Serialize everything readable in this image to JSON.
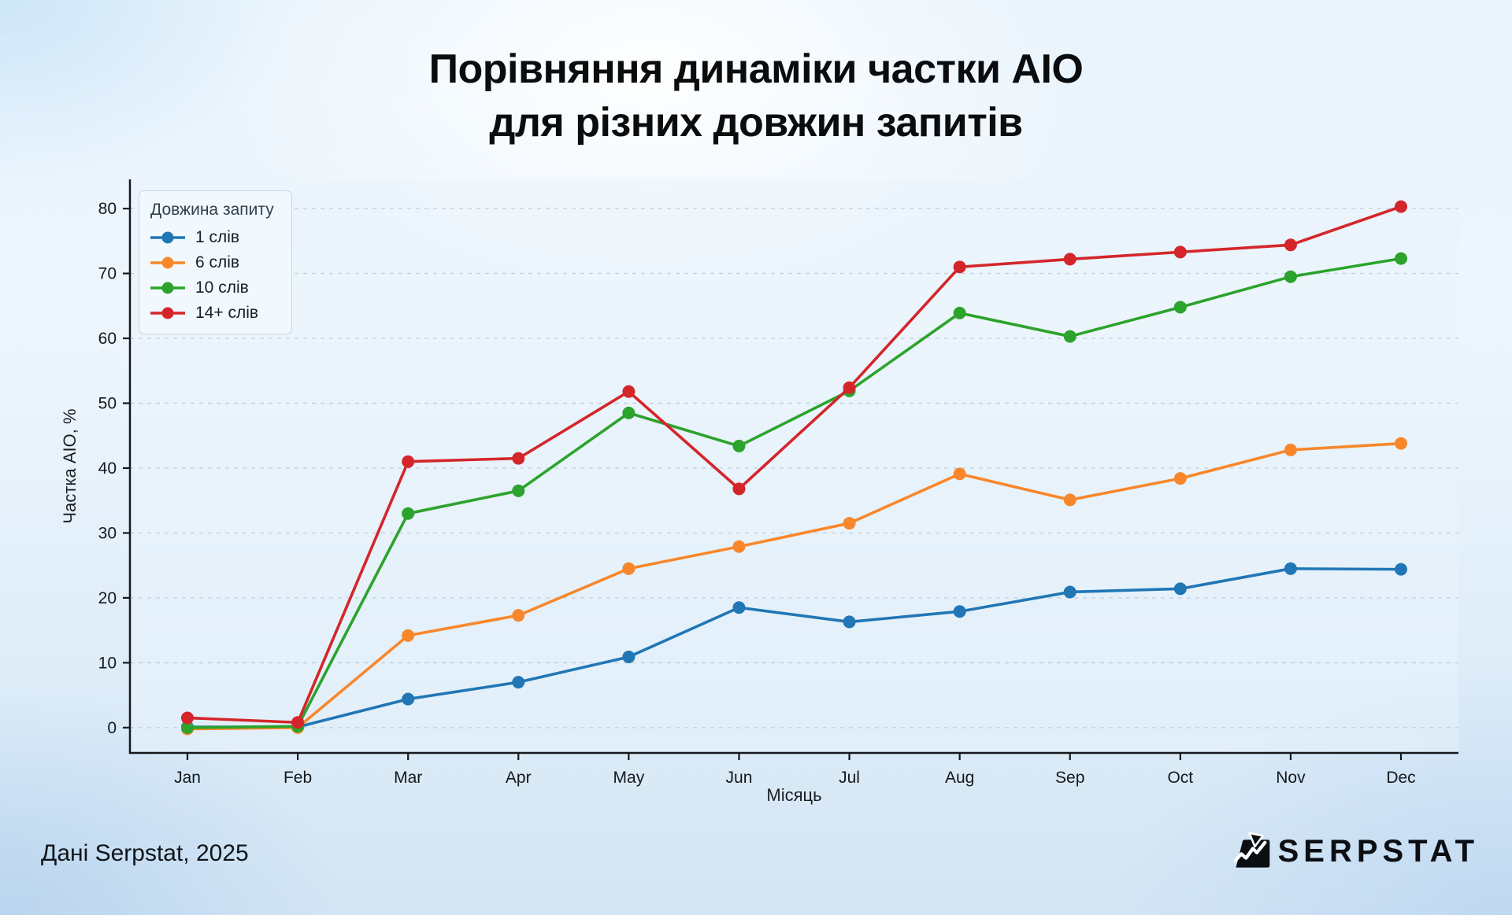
{
  "header": {
    "line1": "Порівняння динаміки частки AIO",
    "line2": "для різних довжин запитів"
  },
  "chart_data": {
    "type": "line",
    "title": "Порівняння динаміки частки AIO для різних довжин запитів",
    "xlabel": "Місяць",
    "ylabel": "Частка AIO, %",
    "categories": [
      "Jan",
      "Feb",
      "Mar",
      "Apr",
      "May",
      "Jun",
      "Jul",
      "Aug",
      "Sep",
      "Oct",
      "Nov",
      "Dec"
    ],
    "yticks": [
      0,
      10,
      20,
      30,
      40,
      50,
      60,
      70,
      80
    ],
    "ylim": [
      -3.9,
      84.5
    ],
    "grid": "horizontal-dashed",
    "legend_title": "Довжина запиту",
    "legend_position": "upper left",
    "series": [
      {
        "name": "1 слів",
        "color": "#2176b5",
        "values": [
          0.1,
          0.1,
          4.4,
          7.0,
          10.9,
          18.5,
          16.3,
          17.9,
          20.9,
          21.4,
          24.5,
          24.4
        ]
      },
      {
        "name": "6 слів",
        "color": "#f8872b",
        "values": [
          -0.2,
          0.0,
          14.2,
          17.3,
          24.5,
          27.9,
          31.5,
          39.1,
          35.1,
          38.4,
          42.8,
          43.8
        ]
      },
      {
        "name": "10 слів",
        "color": "#2ca32c",
        "values": [
          0.0,
          0.2,
          33.0,
          36.5,
          48.5,
          43.4,
          51.9,
          63.9,
          60.3,
          64.8,
          69.5,
          72.3
        ]
      },
      {
        "name": "14+ слів",
        "color": "#d4262a",
        "values": [
          1.5,
          0.8,
          41.0,
          41.5,
          51.8,
          36.8,
          52.4,
          71.0,
          72.2,
          73.3,
          74.4,
          80.3
        ]
      }
    ]
  },
  "footer": {
    "source": "Дані Serpstat, 2025",
    "brand": "SERPSTAT"
  }
}
